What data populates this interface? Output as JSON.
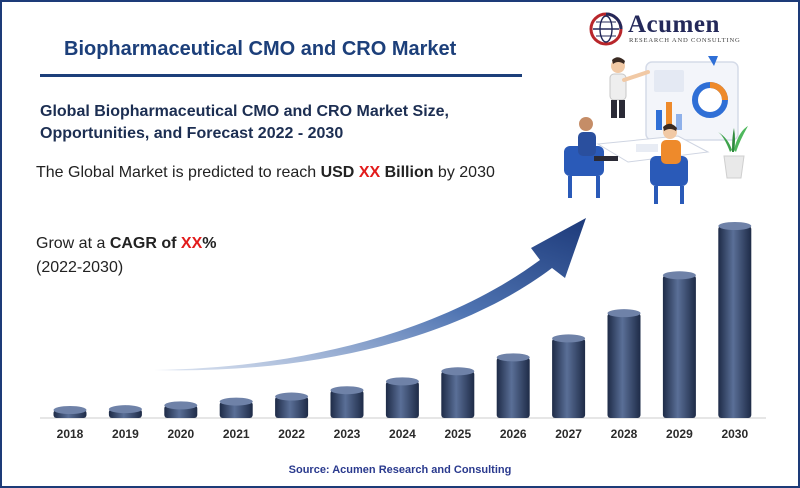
{
  "header": {
    "title": "Biopharmaceutical CMO and CRO Market",
    "subtitle": "Global Biopharmaceutical CMO and CRO Market Size, Opportunities, and Forecast 2022 - 2030"
  },
  "logo": {
    "name": "Acumen",
    "tagline": "RESEARCH AND CONSULTING"
  },
  "info": {
    "reach_prefix": "The Global Market is predicted to reach ",
    "reach_usd": "USD ",
    "reach_xx": "XX",
    "reach_billion": " Billion",
    "reach_suffix": " by 2030",
    "cagr_prefix": "Grow at a ",
    "cagr_label": "CAGR of ",
    "cagr_xx": "XX",
    "cagr_pct": "%",
    "cagr_period": "(2022-2030)"
  },
  "chart_data": {
    "type": "bar",
    "title": "",
    "xlabel": "",
    "ylabel": "",
    "categories": [
      "2018",
      "2019",
      "2020",
      "2021",
      "2022",
      "2023",
      "2024",
      "2025",
      "2026",
      "2027",
      "2028",
      "2029",
      "2030"
    ],
    "values": [
      5,
      7,
      10,
      13,
      17,
      22,
      29,
      37,
      48,
      63,
      83,
      113,
      152
    ],
    "grid": false,
    "legend": "none",
    "trend_arrow": true,
    "bar_color": "#2c3d63",
    "arrow_color": "#1e3d78"
  },
  "footer": {
    "source": "Source: Acumen Research and Consulting"
  },
  "colors": {
    "brand_navy": "#1c3f7a",
    "highlight_red": "#e21b1b",
    "frame": "#1d3b78"
  },
  "illustration": {
    "icon": "business-meeting-illustration"
  }
}
